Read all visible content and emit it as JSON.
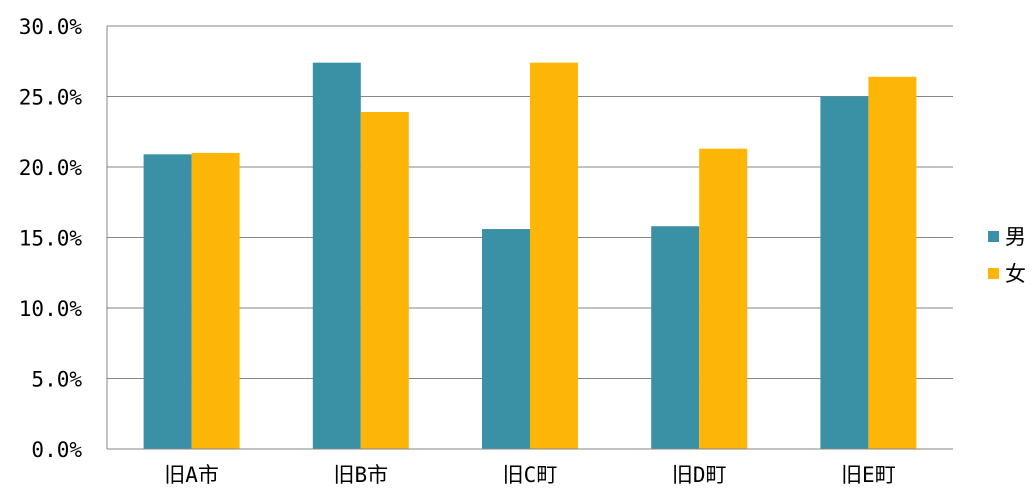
{
  "chart_data": {
    "type": "bar",
    "categories": [
      "旧A市",
      "旧B市",
      "旧C町",
      "旧D町",
      "旧E町"
    ],
    "series": [
      {
        "name": "男",
        "values": [
          20.9,
          27.4,
          15.6,
          15.8,
          25.0
        ],
        "color": "#3A91A6"
      },
      {
        "name": "女",
        "values": [
          21.0,
          23.9,
          27.4,
          21.3,
          26.4
        ],
        "color": "#FDB507"
      }
    ],
    "ylim": [
      0,
      30
    ],
    "yticks": [
      "0.0%",
      "5.0%",
      "10.0%",
      "15.0%",
      "20.0%",
      "25.0%",
      "30.0%"
    ],
    "ytick_values": [
      0,
      5,
      10,
      15,
      20,
      25,
      30
    ],
    "grid": true,
    "legend_position": "right",
    "colors": {
      "grid": "#868686",
      "axis": "#868686",
      "text": "#000000"
    }
  }
}
